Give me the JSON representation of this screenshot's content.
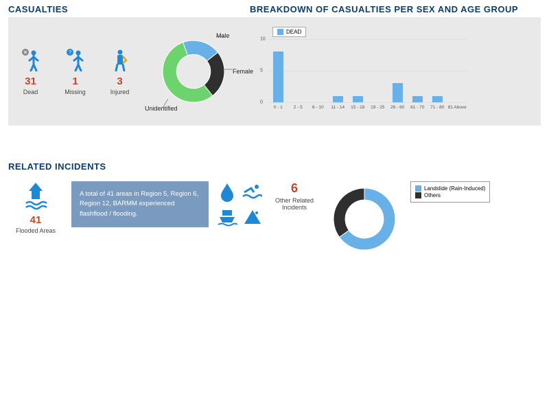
{
  "colors": {
    "heading": "#0a3d6b",
    "panel_bg": "#e9e9e9",
    "icon_blue": "#1e88d6",
    "dead_color": "#c9452a",
    "missing_color": "#c9452a",
    "injured_color": "#c9452a",
    "donut_green": "#6dd36d",
    "donut_dark": "#2f2f2f",
    "donut_blue": "#68b0e8",
    "bar_color": "#68b0e8",
    "other_donut_blue": "#68b0e8",
    "other_donut_dark": "#2f2f2f",
    "info_box_bg": "#7a9bbf"
  },
  "casualties": {
    "heading": "CASUALTIES",
    "stats": [
      {
        "value": "31",
        "label": "Dead",
        "color": "#c9452a"
      },
      {
        "value": "1",
        "label": "Missing",
        "color": "#c9452a"
      },
      {
        "value": "3",
        "label": "Injured",
        "color": "#c9452a"
      }
    ]
  },
  "breakdown": {
    "heading": "BREAKDOWN OF CASUALTIES PER SEX AND AGE GROUP",
    "donut": {
      "type": "pie",
      "inner_radius_pct": 55,
      "slices": [
        {
          "label": "Unidentified",
          "value": 55,
          "color": "#6dd36d"
        },
        {
          "label": "Female",
          "value": 25,
          "color": "#2f2f2f"
        },
        {
          "label": "Male",
          "value": 20,
          "color": "#68b0e8"
        }
      ]
    },
    "bar": {
      "type": "bar",
      "legend_label": "DEAD",
      "legend_color": "#68b0e8",
      "bar_color": "#68b0e8",
      "ylim": [
        0,
        10
      ],
      "yticks": [
        0,
        5,
        10
      ],
      "categories": [
        "0 - 1",
        "2 - 5",
        "6 - 10",
        "11 - 14",
        "15 - 18",
        "19 - 25",
        "26 - 60",
        "61 - 70",
        "71 - 80",
        "81 Above"
      ],
      "values": [
        8,
        0,
        0,
        1,
        1,
        0,
        3,
        1,
        1,
        0
      ]
    }
  },
  "related": {
    "heading": "RELATED INCIDENTS",
    "flooded": {
      "value": "41",
      "label": "Flooded Areas",
      "color": "#c9452a"
    },
    "info_text": "A total of 41 areas in Region 5, Region 6, Region 12, BARMM experienced flashflood / flooding.",
    "other": {
      "value": "6",
      "label": "Other Related Incidents",
      "color": "#c9452a"
    },
    "donut": {
      "type": "pie",
      "inner_radius_pct": 62,
      "slices": [
        {
          "label": "Landslide (Rain-Induced)",
          "value": 65,
          "color": "#68b0e8"
        },
        {
          "label": "Others",
          "value": 35,
          "color": "#2f2f2f"
        }
      ]
    }
  }
}
